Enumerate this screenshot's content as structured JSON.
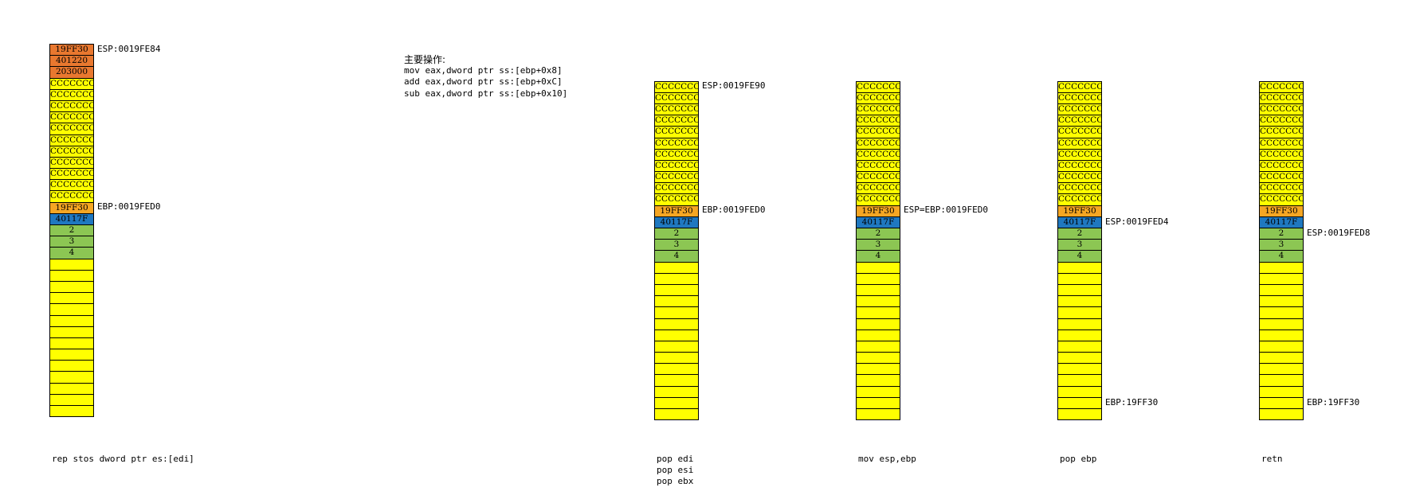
{
  "colors": {
    "orange": "#E9782F",
    "gold": "#F5A623",
    "yellow": "#FFFF00",
    "blue": "#1F78C0",
    "green": "#8CC653"
  },
  "main_ops": {
    "title": "主要操作:",
    "lines": [
      "mov eax,dword ptr ss:[ebp+0x8]",
      "add eax,dword ptr ss:[ebp+0xC]",
      "sub eax,dword ptr ss:[ebp+0x10]"
    ]
  },
  "stacks": [
    {
      "cells": [
        {
          "text": "19FF30",
          "color": "orange"
        },
        {
          "text": "401220",
          "color": "orange"
        },
        {
          "text": "203000",
          "color": "orange"
        },
        {
          "text": "CCCCCCCC",
          "color": "yellow"
        },
        {
          "text": "CCCCCCCC",
          "color": "yellow"
        },
        {
          "text": "CCCCCCCC",
          "color": "yellow"
        },
        {
          "text": "CCCCCCCC",
          "color": "yellow"
        },
        {
          "text": "CCCCCCCC",
          "color": "yellow"
        },
        {
          "text": "CCCCCCCC",
          "color": "yellow"
        },
        {
          "text": "CCCCCCCC",
          "color": "yellow"
        },
        {
          "text": "CCCCCCCC",
          "color": "yellow"
        },
        {
          "text": "CCCCCCCC",
          "color": "yellow"
        },
        {
          "text": "CCCCCCCC",
          "color": "yellow"
        },
        {
          "text": "CCCCCCCC",
          "color": "yellow"
        },
        {
          "text": "19FF30",
          "color": "gold"
        },
        {
          "text": "40117F",
          "color": "blue"
        },
        {
          "text": "2",
          "color": "green"
        },
        {
          "text": "3",
          "color": "green"
        },
        {
          "text": "4",
          "color": "green"
        },
        {
          "text": "",
          "color": "yellow"
        },
        {
          "text": "",
          "color": "yellow"
        },
        {
          "text": "",
          "color": "yellow"
        },
        {
          "text": "",
          "color": "yellow"
        },
        {
          "text": "",
          "color": "yellow"
        },
        {
          "text": "",
          "color": "yellow"
        },
        {
          "text": "",
          "color": "yellow"
        },
        {
          "text": "",
          "color": "yellow"
        },
        {
          "text": "",
          "color": "yellow"
        },
        {
          "text": "",
          "color": "yellow"
        },
        {
          "text": "",
          "color": "yellow"
        },
        {
          "text": "",
          "color": "yellow"
        },
        {
          "text": "",
          "color": "yellow"
        },
        {
          "text": "",
          "color": "yellow"
        }
      ],
      "labels": [
        {
          "row": 0,
          "text": "ESP:0019FE84"
        },
        {
          "row": 14,
          "text": "EBP:0019FED0"
        }
      ],
      "caption": [
        "rep stos dword ptr es:[edi]"
      ]
    },
    {
      "cells": [
        {
          "text": "CCCCCCCC",
          "color": "yellow"
        },
        {
          "text": "CCCCCCCC",
          "color": "yellow"
        },
        {
          "text": "CCCCCCCC",
          "color": "yellow"
        },
        {
          "text": "CCCCCCCC",
          "color": "yellow"
        },
        {
          "text": "CCCCCCCC",
          "color": "yellow"
        },
        {
          "text": "CCCCCCCC",
          "color": "yellow"
        },
        {
          "text": "CCCCCCCC",
          "color": "yellow"
        },
        {
          "text": "CCCCCCCC",
          "color": "yellow"
        },
        {
          "text": "CCCCCCCC",
          "color": "yellow"
        },
        {
          "text": "CCCCCCCC",
          "color": "yellow"
        },
        {
          "text": "CCCCCCCC",
          "color": "yellow"
        },
        {
          "text": "19FF30",
          "color": "gold"
        },
        {
          "text": "40117F",
          "color": "blue"
        },
        {
          "text": "2",
          "color": "green"
        },
        {
          "text": "3",
          "color": "green"
        },
        {
          "text": "4",
          "color": "green"
        },
        {
          "text": "",
          "color": "yellow"
        },
        {
          "text": "",
          "color": "yellow"
        },
        {
          "text": "",
          "color": "yellow"
        },
        {
          "text": "",
          "color": "yellow"
        },
        {
          "text": "",
          "color": "yellow"
        },
        {
          "text": "",
          "color": "yellow"
        },
        {
          "text": "",
          "color": "yellow"
        },
        {
          "text": "",
          "color": "yellow"
        },
        {
          "text": "",
          "color": "yellow"
        },
        {
          "text": "",
          "color": "yellow"
        },
        {
          "text": "",
          "color": "yellow"
        },
        {
          "text": "",
          "color": "yellow"
        },
        {
          "text": "",
          "color": "yellow"
        },
        {
          "text": "",
          "color": "yellow"
        }
      ],
      "labels": [
        {
          "row": 0,
          "text": "ESP:0019FE90"
        },
        {
          "row": 11,
          "text": "EBP:0019FED0"
        }
      ],
      "caption": [
        "pop edi",
        "pop esi",
        "pop ebx"
      ]
    },
    {
      "cells": [
        {
          "text": "CCCCCCCC",
          "color": "yellow"
        },
        {
          "text": "CCCCCCCC",
          "color": "yellow"
        },
        {
          "text": "CCCCCCCC",
          "color": "yellow"
        },
        {
          "text": "CCCCCCCC",
          "color": "yellow"
        },
        {
          "text": "CCCCCCCC",
          "color": "yellow"
        },
        {
          "text": "CCCCCCCC",
          "color": "yellow"
        },
        {
          "text": "CCCCCCCC",
          "color": "yellow"
        },
        {
          "text": "CCCCCCCC",
          "color": "yellow"
        },
        {
          "text": "CCCCCCCC",
          "color": "yellow"
        },
        {
          "text": "CCCCCCCC",
          "color": "yellow"
        },
        {
          "text": "CCCCCCCC",
          "color": "yellow"
        },
        {
          "text": "19FF30",
          "color": "gold"
        },
        {
          "text": "40117F",
          "color": "blue"
        },
        {
          "text": "2",
          "color": "green"
        },
        {
          "text": "3",
          "color": "green"
        },
        {
          "text": "4",
          "color": "green"
        },
        {
          "text": "",
          "color": "yellow"
        },
        {
          "text": "",
          "color": "yellow"
        },
        {
          "text": "",
          "color": "yellow"
        },
        {
          "text": "",
          "color": "yellow"
        },
        {
          "text": "",
          "color": "yellow"
        },
        {
          "text": "",
          "color": "yellow"
        },
        {
          "text": "",
          "color": "yellow"
        },
        {
          "text": "",
          "color": "yellow"
        },
        {
          "text": "",
          "color": "yellow"
        },
        {
          "text": "",
          "color": "yellow"
        },
        {
          "text": "",
          "color": "yellow"
        },
        {
          "text": "",
          "color": "yellow"
        },
        {
          "text": "",
          "color": "yellow"
        },
        {
          "text": "",
          "color": "yellow"
        }
      ],
      "labels": [
        {
          "row": 11,
          "text": "ESP=EBP:0019FED0"
        }
      ],
      "caption": [
        "mov esp,ebp"
      ]
    },
    {
      "cells": [
        {
          "text": "CCCCCCCC",
          "color": "yellow"
        },
        {
          "text": "CCCCCCCC",
          "color": "yellow"
        },
        {
          "text": "CCCCCCCC",
          "color": "yellow"
        },
        {
          "text": "CCCCCCCC",
          "color": "yellow"
        },
        {
          "text": "CCCCCCCC",
          "color": "yellow"
        },
        {
          "text": "CCCCCCCC",
          "color": "yellow"
        },
        {
          "text": "CCCCCCCC",
          "color": "yellow"
        },
        {
          "text": "CCCCCCCC",
          "color": "yellow"
        },
        {
          "text": "CCCCCCCC",
          "color": "yellow"
        },
        {
          "text": "CCCCCCCC",
          "color": "yellow"
        },
        {
          "text": "CCCCCCCC",
          "color": "yellow"
        },
        {
          "text": "19FF30",
          "color": "gold"
        },
        {
          "text": "40117F",
          "color": "blue"
        },
        {
          "text": "2",
          "color": "green"
        },
        {
          "text": "3",
          "color": "green"
        },
        {
          "text": "4",
          "color": "green"
        },
        {
          "text": "",
          "color": "yellow"
        },
        {
          "text": "",
          "color": "yellow"
        },
        {
          "text": "",
          "color": "yellow"
        },
        {
          "text": "",
          "color": "yellow"
        },
        {
          "text": "",
          "color": "yellow"
        },
        {
          "text": "",
          "color": "yellow"
        },
        {
          "text": "",
          "color": "yellow"
        },
        {
          "text": "",
          "color": "yellow"
        },
        {
          "text": "",
          "color": "yellow"
        },
        {
          "text": "",
          "color": "yellow"
        },
        {
          "text": "",
          "color": "yellow"
        },
        {
          "text": "",
          "color": "yellow"
        },
        {
          "text": "",
          "color": "yellow"
        },
        {
          "text": "",
          "color": "yellow"
        }
      ],
      "labels": [
        {
          "row": 12,
          "text": "ESP:0019FED4"
        },
        {
          "row": 28,
          "text": "EBP:19FF30"
        }
      ],
      "caption": [
        "pop ebp"
      ]
    },
    {
      "cells": [
        {
          "text": "CCCCCCCC",
          "color": "yellow"
        },
        {
          "text": "CCCCCCCC",
          "color": "yellow"
        },
        {
          "text": "CCCCCCCC",
          "color": "yellow"
        },
        {
          "text": "CCCCCCCC",
          "color": "yellow"
        },
        {
          "text": "CCCCCCCC",
          "color": "yellow"
        },
        {
          "text": "CCCCCCCC",
          "color": "yellow"
        },
        {
          "text": "CCCCCCCC",
          "color": "yellow"
        },
        {
          "text": "CCCCCCCC",
          "color": "yellow"
        },
        {
          "text": "CCCCCCCC",
          "color": "yellow"
        },
        {
          "text": "CCCCCCCC",
          "color": "yellow"
        },
        {
          "text": "CCCCCCCC",
          "color": "yellow"
        },
        {
          "text": "19FF30",
          "color": "gold"
        },
        {
          "text": "40117F",
          "color": "blue"
        },
        {
          "text": "2",
          "color": "green"
        },
        {
          "text": "3",
          "color": "green"
        },
        {
          "text": "4",
          "color": "green"
        },
        {
          "text": "",
          "color": "yellow"
        },
        {
          "text": "",
          "color": "yellow"
        },
        {
          "text": "",
          "color": "yellow"
        },
        {
          "text": "",
          "color": "yellow"
        },
        {
          "text": "",
          "color": "yellow"
        },
        {
          "text": "",
          "color": "yellow"
        },
        {
          "text": "",
          "color": "yellow"
        },
        {
          "text": "",
          "color": "yellow"
        },
        {
          "text": "",
          "color": "yellow"
        },
        {
          "text": "",
          "color": "yellow"
        },
        {
          "text": "",
          "color": "yellow"
        },
        {
          "text": "",
          "color": "yellow"
        },
        {
          "text": "",
          "color": "yellow"
        },
        {
          "text": "",
          "color": "yellow"
        }
      ],
      "labels": [
        {
          "row": 13,
          "text": "ESP:0019FED8"
        },
        {
          "row": 28,
          "text": "EBP:19FF30"
        }
      ],
      "caption": [
        "retn"
      ]
    }
  ]
}
